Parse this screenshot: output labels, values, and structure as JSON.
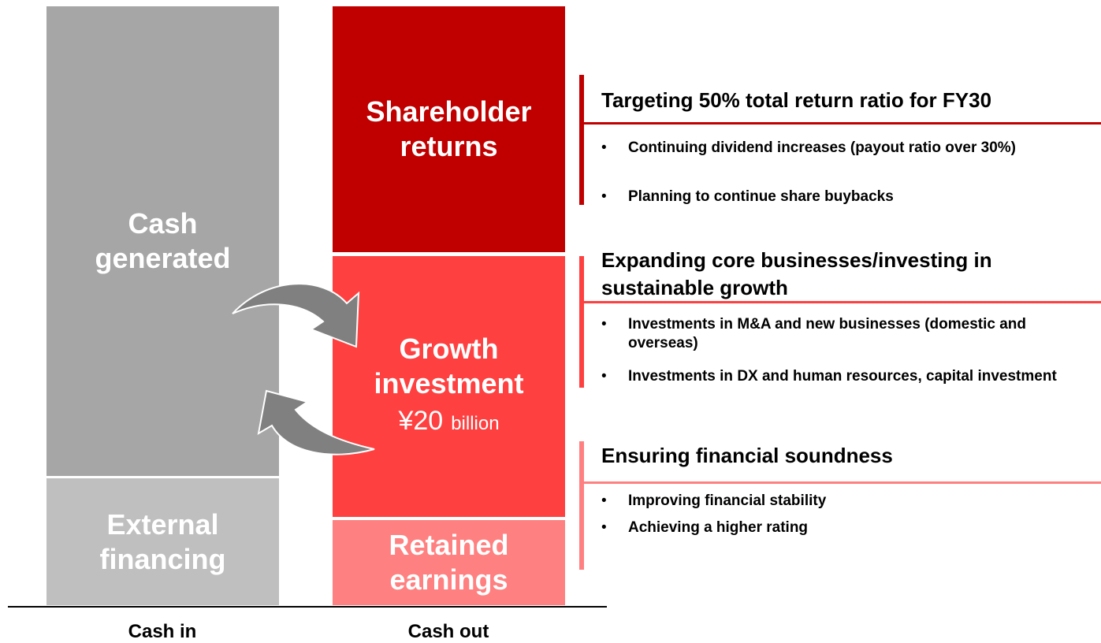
{
  "cash_in": {
    "label": "Cash in",
    "blocks": [
      {
        "lines": [
          "Cash",
          "generated"
        ]
      },
      {
        "lines": [
          "External",
          "financing"
        ]
      }
    ]
  },
  "cash_out": {
    "label": "Cash out",
    "blocks": [
      {
        "lines": [
          "Shareholder",
          "returns"
        ]
      },
      {
        "lines": [
          "Growth",
          "investment"
        ],
        "amount": "¥20",
        "unit": "billion"
      },
      {
        "lines": [
          "Retained",
          "earnings"
        ]
      }
    ]
  },
  "sections": [
    {
      "title": "Targeting 50% total return ratio for FY30",
      "bullets": [
        "Continuing dividend increases (payout ratio over 30%)",
        "Planning to continue share buybacks"
      ]
    },
    {
      "title": "Expanding core businesses/investing in sustainable growth",
      "bullets": [
        "Investments in M&A and new businesses (domestic and overseas)",
        "Investments in DX and human resources, capital investment"
      ]
    },
    {
      "title": "Ensuring financial soundness",
      "bullets": [
        "Improving financial stability",
        "Achieving a higher rating"
      ]
    }
  ]
}
